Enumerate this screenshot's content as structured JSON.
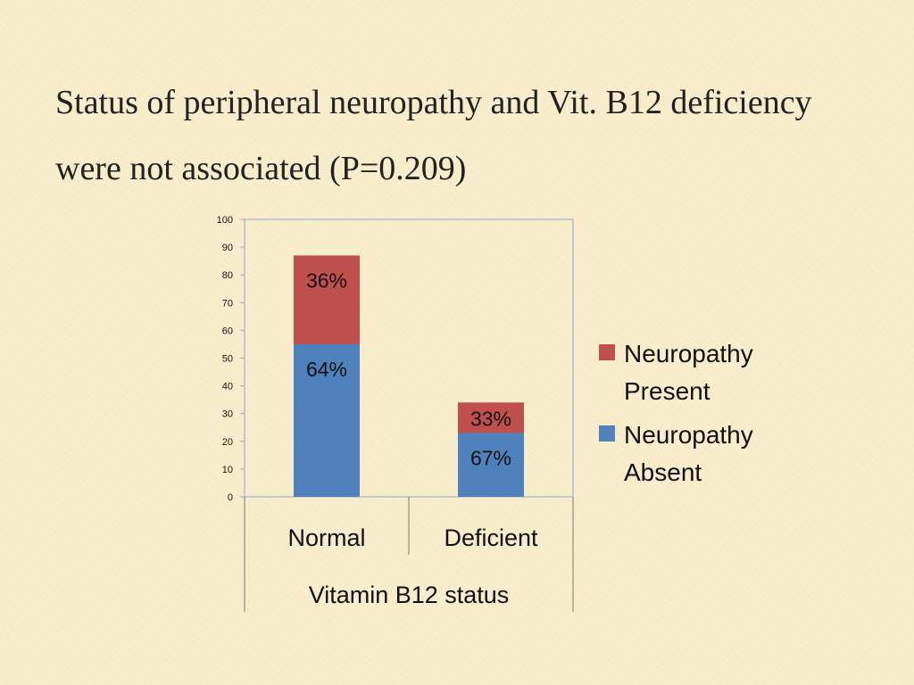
{
  "title": {
    "line1": "Status of peripheral neuropathy and Vit. B12 deficiency",
    "line2": "were not associated (P=0.209)"
  },
  "chart_data": {
    "type": "bar",
    "stacked": true,
    "xlabel": "Vitamin B12 status",
    "ylabel": "",
    "ylim": [
      0,
      100
    ],
    "yticks": [
      0,
      10,
      20,
      30,
      40,
      50,
      60,
      70,
      80,
      90,
      100
    ],
    "categories": [
      "Normal",
      "Deficient"
    ],
    "series": [
      {
        "name": "Neuropathy Absent",
        "legend_lines": [
          "Neuropathy",
          "Absent"
        ],
        "color": "#4f81bd",
        "values": [
          55,
          23
        ],
        "labels": [
          "64%",
          "67%"
        ]
      },
      {
        "name": "Neuropathy Present",
        "legend_lines": [
          "Neuropathy",
          "Present"
        ],
        "color": "#c0504d",
        "values": [
          32,
          11
        ],
        "labels": [
          "36%",
          "33%"
        ]
      }
    ],
    "legend_position": "right",
    "grid": false
  }
}
